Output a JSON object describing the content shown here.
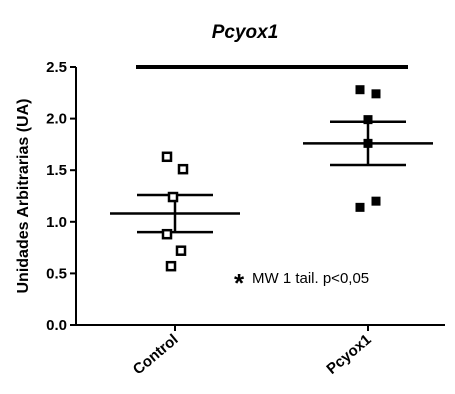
{
  "chart_data": {
    "type": "scatter",
    "title": "Pcyox1",
    "ylabel": "Unidades Arbitrarias (UA)",
    "xlabel": "",
    "ylim": [
      0,
      2.5
    ],
    "yticks": [
      "0.0",
      "0.5",
      "1.0",
      "1.5",
      "2.0",
      "2.5"
    ],
    "categories": [
      "Control",
      "Pcyox1"
    ],
    "series": [
      {
        "marker": "open-square",
        "values": [
          1.63,
          1.51,
          1.24,
          0.88,
          0.72,
          0.57
        ],
        "mean": 1.08,
        "sem_low": 0.9,
        "sem_high": 1.26
      },
      {
        "marker": "filled-square",
        "values": [
          2.28,
          2.24,
          1.99,
          1.76,
          1.2,
          1.14
        ],
        "mean": 1.76,
        "sem_low": 1.55,
        "sem_high": 1.97
      }
    ],
    "annotation": {
      "star": "*",
      "text": "MW 1 tail. p<0,05"
    },
    "reference_line_y": 2.5
  },
  "colors": {
    "ink": "#000000",
    "background": "#ffffff"
  }
}
